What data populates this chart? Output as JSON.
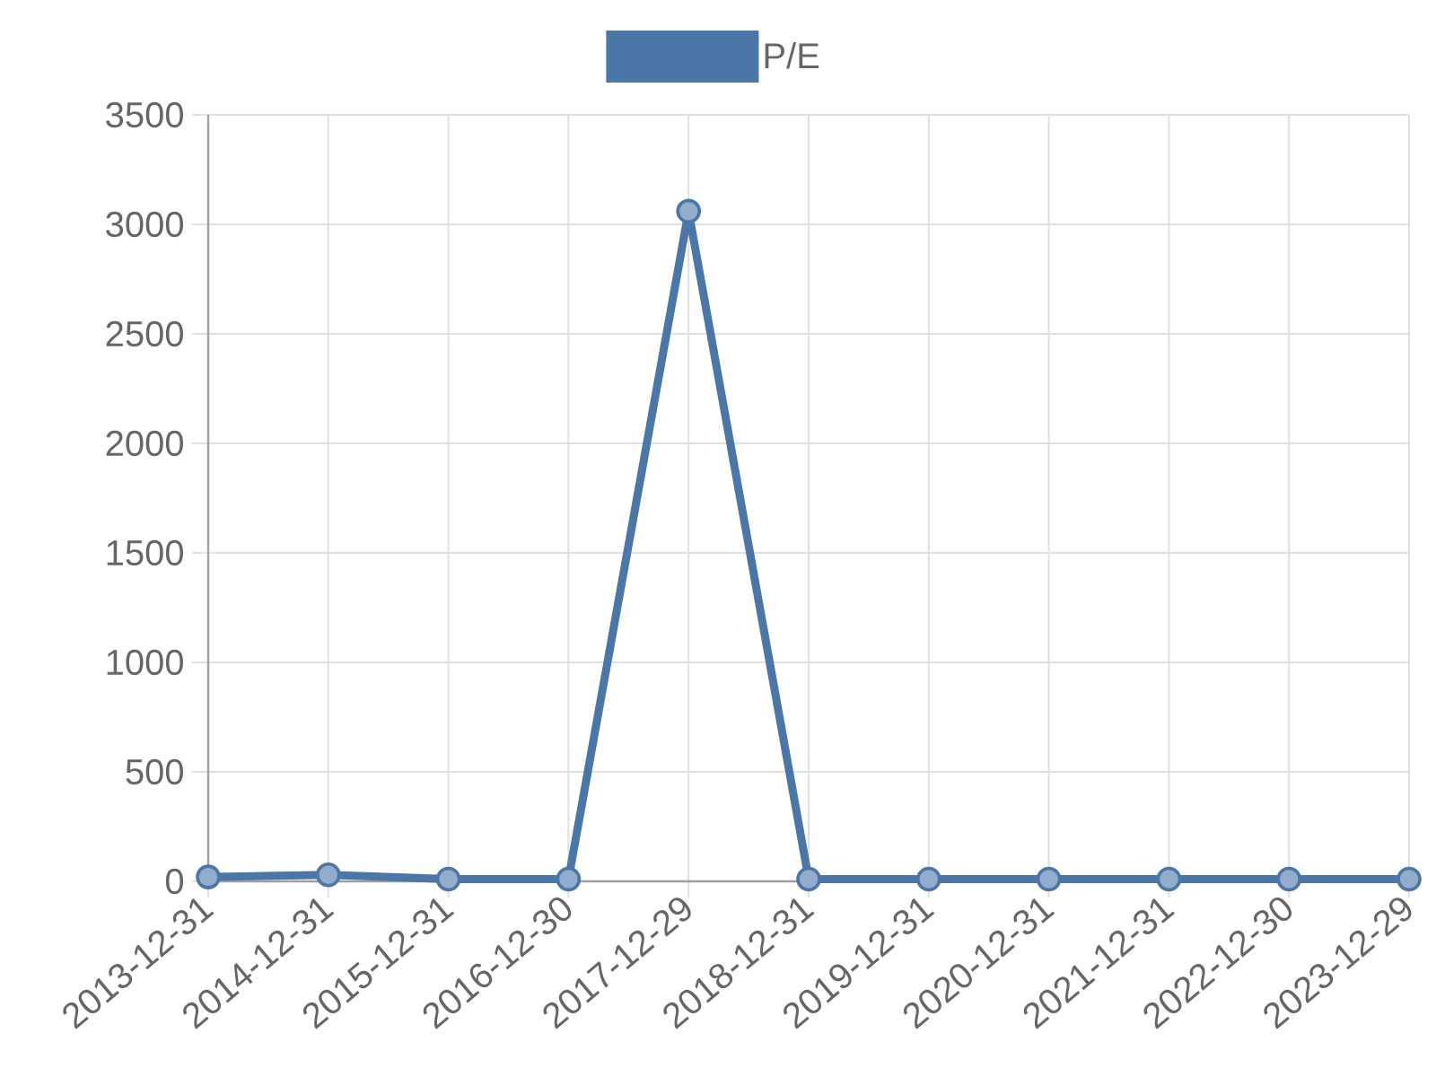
{
  "chart_data": {
    "type": "line",
    "categories": [
      "2013-12-31",
      "2014-12-31",
      "2015-12-31",
      "2016-12-30",
      "2017-12-29",
      "2018-12-31",
      "2019-12-31",
      "2020-12-31",
      "2021-12-31",
      "2022-12-30",
      "2023-12-29"
    ],
    "series": [
      {
        "name": "P/E",
        "color": "#4a77a8",
        "values": [
          20,
          30,
          10,
          10,
          3060,
          10,
          10,
          10,
          10,
          10,
          10
        ]
      }
    ],
    "ylim": [
      0,
      3500
    ],
    "yticks": [
      0,
      500,
      1000,
      1500,
      2000,
      2500,
      3000,
      3500
    ],
    "grid": true,
    "legend": "top",
    "marker": "circle",
    "line_style": "solid"
  }
}
